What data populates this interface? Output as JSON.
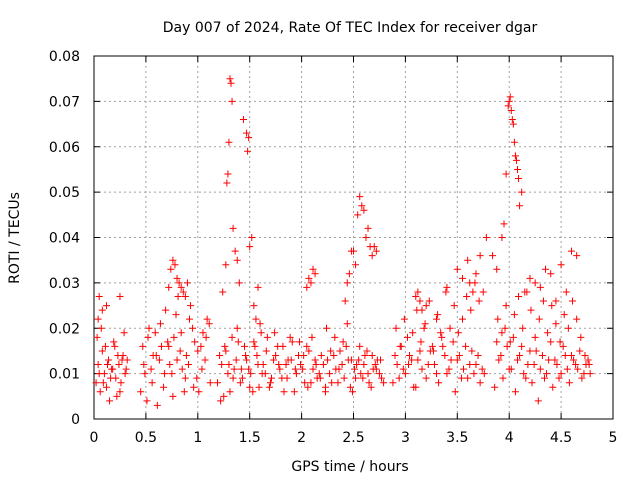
{
  "chart_data": {
    "type": "scatter",
    "title": "Day 007 of 2024, Rate Of TEC Index for receiver dgar",
    "xlabel": "GPS time / hours",
    "ylabel": "ROTI / TECUs",
    "xlim": [
      0,
      5
    ],
    "ylim": [
      0,
      0.08
    ],
    "xticks": [
      0,
      0.5,
      1,
      1.5,
      2,
      2.5,
      3,
      3.5,
      4,
      4.5,
      5
    ],
    "xtick_labels": [
      "0",
      "0.5",
      "1",
      "1.5",
      "2",
      "2.5",
      "3",
      "3.5",
      "4",
      "4.5",
      "5"
    ],
    "yticks": [
      0,
      0.01,
      0.02,
      0.03,
      0.04,
      0.05,
      0.06,
      0.07,
      0.08
    ],
    "ytick_labels": [
      "0",
      "0.01",
      "0.02",
      "0.03",
      "0.04",
      "0.05",
      "0.06",
      "0.07",
      "0.08"
    ],
    "grid": true,
    "marker": "+",
    "color": "#ff0000",
    "series": [
      {
        "name": "ROTI",
        "x": [
          0.02,
          0.04,
          0.06,
          0.08,
          0.1,
          0.12,
          0.14,
          0.16,
          0.18,
          0.2,
          0.22,
          0.24,
          0.26,
          0.28,
          0.3,
          0.32,
          0.03,
          0.05,
          0.07,
          0.09,
          0.11,
          0.13,
          0.15,
          0.17,
          0.19,
          0.21,
          0.23,
          0.25,
          0.27,
          0.29,
          0.31,
          0.05,
          0.08,
          0.12,
          0.25,
          0.04,
          0.45,
          0.48,
          0.52,
          0.56,
          0.6,
          0.64,
          0.68,
          0.72,
          0.76,
          0.8,
          0.84,
          0.88,
          0.92,
          0.96,
          1.0,
          1.04,
          1.08,
          1.12,
          0.47,
          0.51,
          0.55,
          0.59,
          0.63,
          0.67,
          0.71,
          0.75,
          0.79,
          0.83,
          0.87,
          0.91,
          0.95,
          0.99,
          1.03,
          1.07,
          1.11,
          0.49,
          0.53,
          0.57,
          0.61,
          0.65,
          0.69,
          0.73,
          0.77,
          0.81,
          0.85,
          0.89,
          0.93,
          0.97,
          1.01,
          1.05,
          1.09,
          0.72,
          0.74,
          0.76,
          0.78,
          0.8,
          0.82,
          0.84,
          0.86,
          0.88,
          0.9,
          1.19,
          1.23,
          1.27,
          1.31,
          1.35,
          1.39,
          1.43,
          1.47,
          1.51,
          1.55,
          1.59,
          1.63,
          1.67,
          1.71,
          1.75,
          1.79,
          1.83,
          1.87,
          1.91,
          1.95,
          1.99,
          2.03,
          2.07,
          2.11,
          2.15,
          2.19,
          2.23,
          1.21,
          1.25,
          1.29,
          1.33,
          1.37,
          1.41,
          1.45,
          1.49,
          1.53,
          1.57,
          1.61,
          1.65,
          1.69,
          1.73,
          1.77,
          1.81,
          1.85,
          1.89,
          1.93,
          1.97,
          2.01,
          2.05,
          2.09,
          2.13,
          2.17,
          2.21,
          1.22,
          1.26,
          1.3,
          1.34,
          1.38,
          1.42,
          1.46,
          1.5,
          1.54,
          1.58,
          1.62,
          1.66,
          1.7,
          1.74,
          1.78,
          1.82,
          1.86,
          1.9,
          1.94,
          1.98,
          2.02,
          2.06,
          2.1,
          2.14,
          2.18,
          1.24,
          1.27,
          1.28,
          1.29,
          1.3,
          1.31,
          1.32,
          1.33,
          1.34,
          1.36,
          1.38,
          1.4,
          1.44,
          1.47,
          1.48,
          1.49,
          1.5,
          1.52,
          1.54,
          1.56,
          1.58,
          1.6,
          2.05,
          2.07,
          2.09,
          2.11,
          2.13,
          2.23,
          2.27,
          2.31,
          2.35,
          2.39,
          2.43,
          2.47,
          2.51,
          2.55,
          2.59,
          2.63,
          2.67,
          2.71,
          2.75,
          2.79,
          2.25,
          2.29,
          2.33,
          2.37,
          2.41,
          2.45,
          2.49,
          2.53,
          2.57,
          2.61,
          2.65,
          2.69,
          2.73,
          2.77,
          2.24,
          2.28,
          2.32,
          2.36,
          2.4,
          2.44,
          2.48,
          2.52,
          2.56,
          2.6,
          2.64,
          2.68,
          2.72,
          2.76,
          2.42,
          2.44,
          2.46,
          2.48,
          2.5,
          2.52,
          2.54,
          2.56,
          2.58,
          2.6,
          2.62,
          2.64,
          2.66,
          2.68,
          2.7,
          2.72,
          2.88,
          2.92,
          2.96,
          3.0,
          3.04,
          3.08,
          3.12,
          3.16,
          3.2,
          3.24,
          3.28,
          3.32,
          3.36,
          3.4,
          3.44,
          3.48,
          3.52,
          3.56,
          3.6,
          3.64,
          3.68,
          3.72,
          3.76,
          2.9,
          2.94,
          2.98,
          3.02,
          3.06,
          3.1,
          3.14,
          3.18,
          3.22,
          3.26,
          3.3,
          3.34,
          3.38,
          3.42,
          3.46,
          3.5,
          3.54,
          3.58,
          3.62,
          3.66,
          3.7,
          3.74,
          2.91,
          2.95,
          2.99,
          3.03,
          3.07,
          3.11,
          3.15,
          3.19,
          3.23,
          3.27,
          3.31,
          3.35,
          3.39,
          3.43,
          3.47,
          3.51,
          3.55,
          3.59,
          3.63,
          3.67,
          3.71,
          3.75,
          3.1,
          3.12,
          3.14,
          3.16,
          3.2,
          3.3,
          3.4,
          3.5,
          3.55,
          3.6,
          3.62,
          3.65,
          3.68,
          3.72,
          3.78,
          3.86,
          3.9,
          3.94,
          3.98,
          4.02,
          4.06,
          4.1,
          4.14,
          4.18,
          4.22,
          4.26,
          4.3,
          4.34,
          4.38,
          4.42,
          4.46,
          4.5,
          4.54,
          4.58,
          4.62,
          4.66,
          4.7,
          4.74,
          4.78,
          3.88,
          3.92,
          3.96,
          4.0,
          4.04,
          4.08,
          4.12,
          4.16,
          4.2,
          4.24,
          4.28,
          4.32,
          4.36,
          4.4,
          4.44,
          4.48,
          4.52,
          4.56,
          4.6,
          4.64,
          4.68,
          4.72,
          4.76,
          3.89,
          3.93,
          3.97,
          4.01,
          4.05,
          4.09,
          4.13,
          4.17,
          4.21,
          4.25,
          4.29,
          4.33,
          4.37,
          4.41,
          4.45,
          4.49,
          4.53,
          4.57,
          4.61,
          4.65,
          4.69,
          4.73,
          4.77,
          3.84,
          3.88,
          3.93,
          3.95,
          3.97,
          3.99,
          4.0,
          4.01,
          4.02,
          4.03,
          4.04,
          4.05,
          4.06,
          4.07,
          4.08,
          4.09,
          4.1,
          4.12,
          4.15,
          4.2,
          4.25,
          4.3,
          4.35,
          4.4,
          4.45,
          4.5,
          4.55,
          4.6,
          4.65
        ],
        "y": [
          0.008,
          0.012,
          0.006,
          0.015,
          0.01,
          0.007,
          0.013,
          0.009,
          0.011,
          0.016,
          0.005,
          0.012,
          0.008,
          0.014,
          0.01,
          0.013,
          0.018,
          0.01,
          0.02,
          0.008,
          0.016,
          0.012,
          0.004,
          0.011,
          0.017,
          0.009,
          0.014,
          0.006,
          0.013,
          0.019,
          0.011,
          0.027,
          0.024,
          0.025,
          0.027,
          0.022,
          0.006,
          0.012,
          0.018,
          0.008,
          0.014,
          0.021,
          0.01,
          0.016,
          0.005,
          0.013,
          0.019,
          0.009,
          0.022,
          0.007,
          0.015,
          0.011,
          0.018,
          0.008,
          0.016,
          0.004,
          0.011,
          0.019,
          0.013,
          0.007,
          0.017,
          0.01,
          0.023,
          0.015,
          0.006,
          0.012,
          0.02,
          0.009,
          0.016,
          0.013,
          0.021,
          0.01,
          0.02,
          0.014,
          0.003,
          0.016,
          0.024,
          0.012,
          0.018,
          0.027,
          0.011,
          0.014,
          0.025,
          0.017,
          0.006,
          0.019,
          0.022,
          0.029,
          0.033,
          0.035,
          0.034,
          0.031,
          0.03,
          0.029,
          0.028,
          0.027,
          0.03,
          0.008,
          0.012,
          0.015,
          0.006,
          0.011,
          0.017,
          0.009,
          0.013,
          0.01,
          0.016,
          0.007,
          0.012,
          0.018,
          0.009,
          0.014,
          0.011,
          0.006,
          0.013,
          0.017,
          0.01,
          0.012,
          0.008,
          0.015,
          0.011,
          0.009,
          0.014,
          0.007,
          0.014,
          0.005,
          0.01,
          0.018,
          0.013,
          0.008,
          0.016,
          0.011,
          0.006,
          0.014,
          0.019,
          0.01,
          0.007,
          0.013,
          0.016,
          0.009,
          0.012,
          0.018,
          0.006,
          0.014,
          0.011,
          0.016,
          0.008,
          0.013,
          0.01,
          0.012,
          0.004,
          0.016,
          0.012,
          0.009,
          0.02,
          0.011,
          0.014,
          0.007,
          0.017,
          0.012,
          0.01,
          0.015,
          0.008,
          0.019,
          0.012,
          0.016,
          0.009,
          0.013,
          0.011,
          0.017,
          0.014,
          0.007,
          0.018,
          0.012,
          0.009,
          0.028,
          0.034,
          0.052,
          0.054,
          0.061,
          0.075,
          0.074,
          0.07,
          0.042,
          0.037,
          0.035,
          0.03,
          0.066,
          0.063,
          0.059,
          0.062,
          0.038,
          0.04,
          0.025,
          0.022,
          0.029,
          0.021,
          0.029,
          0.031,
          0.03,
          0.033,
          0.032,
          0.006,
          0.01,
          0.014,
          0.008,
          0.012,
          0.016,
          0.007,
          0.011,
          0.013,
          0.009,
          0.015,
          0.007,
          0.012,
          0.01,
          0.008,
          0.013,
          0.008,
          0.011,
          0.015,
          0.009,
          0.013,
          0.006,
          0.012,
          0.01,
          0.014,
          0.008,
          0.011,
          0.013,
          0.009,
          0.02,
          0.015,
          0.018,
          0.011,
          0.017,
          0.021,
          0.013,
          0.009,
          0.016,
          0.012,
          0.01,
          0.014,
          0.011,
          0.013,
          0.026,
          0.03,
          0.032,
          0.037,
          0.037,
          0.034,
          0.045,
          0.049,
          0.047,
          0.046,
          0.04,
          0.042,
          0.038,
          0.036,
          0.038,
          0.037,
          0.008,
          0.012,
          0.016,
          0.01,
          0.014,
          0.007,
          0.013,
          0.011,
          0.009,
          0.015,
          0.012,
          0.008,
          0.016,
          0.01,
          0.013,
          0.006,
          0.014,
          0.011,
          0.009,
          0.015,
          0.012,
          0.008,
          0.01,
          0.014,
          0.009,
          0.011,
          0.018,
          0.013,
          0.007,
          0.015,
          0.02,
          0.012,
          0.016,
          0.01,
          0.019,
          0.014,
          0.011,
          0.017,
          0.013,
          0.009,
          0.016,
          0.012,
          0.01,
          0.014,
          0.011,
          0.02,
          0.016,
          0.022,
          0.012,
          0.019,
          0.024,
          0.017,
          0.021,
          0.026,
          0.015,
          0.023,
          0.018,
          0.028,
          0.02,
          0.025,
          0.019,
          0.022,
          0.027,
          0.024,
          0.03,
          0.026,
          0.028,
          0.027,
          0.028,
          0.026,
          0.024,
          0.025,
          0.022,
          0.029,
          0.033,
          0.031,
          0.035,
          0.03,
          0.028,
          0.032,
          0.036,
          0.04,
          0.007,
          0.013,
          0.009,
          0.016,
          0.011,
          0.006,
          0.014,
          0.01,
          0.012,
          0.008,
          0.015,
          0.011,
          0.009,
          0.013,
          0.007,
          0.012,
          0.01,
          0.014,
          0.008,
          0.013,
          0.011,
          0.009,
          0.012,
          0.01,
          0.017,
          0.014,
          0.02,
          0.011,
          0.018,
          0.013,
          0.016,
          0.009,
          0.015,
          0.012,
          0.004,
          0.014,
          0.01,
          0.017,
          0.013,
          0.009,
          0.016,
          0.011,
          0.014,
          0.012,
          0.015,
          0.01,
          0.013,
          0.022,
          0.019,
          0.025,
          0.017,
          0.023,
          0.027,
          0.02,
          0.028,
          0.024,
          0.018,
          0.022,
          0.026,
          0.019,
          0.025,
          0.021,
          0.017,
          0.023,
          0.02,
          0.026,
          0.022,
          0.018,
          0.014,
          0.012,
          0.036,
          0.033,
          0.04,
          0.043,
          0.054,
          0.069,
          0.07,
          0.071,
          0.068,
          0.066,
          0.065,
          0.061,
          0.058,
          0.057,
          0.055,
          0.053,
          0.047,
          0.05,
          0.028,
          0.031,
          0.03,
          0.029,
          0.033,
          0.032,
          0.026,
          0.034,
          0.028,
          0.037,
          0.036
        ]
      }
    ]
  }
}
